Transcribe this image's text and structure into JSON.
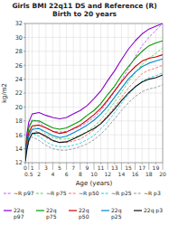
{
  "chart_data": {
    "type": "line",
    "title": "Girls BMI 22q11 DS and Reference (R) Birth to 20 years",
    "x_label": "Age (years)",
    "y_label": "kg/m2",
    "x": [
      0,
      0.25,
      0.5,
      1,
      2,
      3,
      4,
      5,
      6,
      7,
      8,
      9,
      10,
      11,
      12,
      13,
      14,
      15,
      16,
      17,
      18,
      19,
      20
    ],
    "xlim": [
      0,
      20
    ],
    "ylim": [
      12,
      32
    ],
    "xticks": [
      0,
      0.5,
      1,
      2,
      3,
      4,
      5,
      6,
      7,
      8,
      9,
      10,
      11,
      12,
      13,
      14,
      15,
      16,
      17,
      18,
      19,
      20
    ],
    "yticks": [
      12,
      14,
      16,
      18,
      20,
      22,
      24,
      26,
      28,
      30,
      32
    ],
    "grid": true,
    "legend": "bottom",
    "series": [
      {
        "name": "~R p97",
        "color": "#bb44ff",
        "line_style": "dashed",
        "values": [
          13.2,
          15.8,
          17.2,
          18.2,
          17.8,
          17.0,
          16.5,
          16.4,
          16.5,
          16.8,
          17.2,
          17.8,
          18.5,
          19.5,
          20.8,
          22.2,
          23.8,
          25.5,
          27.2,
          28.8,
          30.0,
          31.0,
          32.0
        ]
      },
      {
        "name": "22q\np97",
        "color": "#8800cc",
        "line_style": "solid",
        "values": [
          13.4,
          16.2,
          17.8,
          19.0,
          19.2,
          18.8,
          18.5,
          18.3,
          18.5,
          19.0,
          19.5,
          20.2,
          21.2,
          22.3,
          23.8,
          25.2,
          26.8,
          28.3,
          29.5,
          30.5,
          31.2,
          31.6,
          32.0
        ]
      },
      {
        "name": "~R p75",
        "color": "#44cc44",
        "line_style": "dashed",
        "values": [
          12.9,
          15.2,
          16.5,
          17.3,
          16.9,
          16.1,
          15.6,
          15.4,
          15.4,
          15.6,
          15.9,
          16.5,
          17.2,
          18.2,
          19.4,
          20.7,
          22.1,
          23.6,
          24.9,
          26.1,
          27.0,
          27.7,
          28.5
        ]
      },
      {
        "name": "22q\np75",
        "color": "#009900",
        "line_style": "solid",
        "values": [
          13.0,
          15.5,
          17.0,
          18.0,
          18.0,
          17.5,
          17.0,
          16.8,
          17.0,
          17.5,
          18.0,
          18.8,
          19.5,
          20.5,
          21.8,
          23.0,
          24.5,
          25.8,
          27.0,
          28.0,
          28.8,
          29.2,
          29.5
        ]
      },
      {
        "name": "~R p50",
        "color": "#ff5555",
        "line_style": "dashed",
        "values": [
          12.7,
          14.8,
          16.0,
          16.8,
          16.3,
          15.6,
          15.1,
          14.9,
          14.9,
          15.1,
          15.4,
          16.0,
          16.7,
          17.7,
          18.8,
          20.0,
          21.4,
          22.7,
          23.8,
          24.8,
          25.3,
          25.6,
          26.0
        ]
      },
      {
        "name": "22q\np50",
        "color": "#cc0000",
        "line_style": "solid",
        "values": [
          12.8,
          15.0,
          16.3,
          17.3,
          17.4,
          17.0,
          16.5,
          16.2,
          16.4,
          16.9,
          17.4,
          18.1,
          18.9,
          19.8,
          21.0,
          22.3,
          23.6,
          24.8,
          25.8,
          26.6,
          27.0,
          27.2,
          27.5
        ]
      },
      {
        "name": "~R p25",
        "color": "#00ccdd",
        "line_style": "dashed",
        "values": [
          12.4,
          14.3,
          15.5,
          16.2,
          15.8,
          15.0,
          14.5,
          14.3,
          14.3,
          14.5,
          14.8,
          15.3,
          15.9,
          16.9,
          17.9,
          19.2,
          20.5,
          21.8,
          22.8,
          23.7,
          24.2,
          24.5,
          24.9
        ]
      },
      {
        "name": "22q\np25",
        "color": "#0088cc",
        "line_style": "solid",
        "values": [
          12.5,
          14.6,
          15.8,
          16.8,
          16.9,
          16.4,
          15.9,
          15.6,
          15.8,
          16.3,
          16.8,
          17.4,
          18.1,
          19.0,
          20.1,
          21.4,
          22.7,
          24.0,
          25.0,
          25.8,
          26.3,
          26.6,
          26.9
        ]
      },
      {
        "name": "~R p3",
        "color": "#888888",
        "line_style": "dashed",
        "values": [
          12.1,
          13.8,
          15.0,
          15.7,
          15.2,
          14.5,
          14.0,
          13.8,
          13.8,
          14.0,
          14.3,
          14.7,
          15.3,
          16.1,
          17.1,
          18.3,
          19.5,
          20.6,
          21.5,
          22.2,
          22.6,
          22.8,
          23.2
        ]
      },
      {
        "name": "22q p3",
        "color": "#111111",
        "line_style": "solid",
        "values": [
          12.2,
          14.0,
          15.2,
          16.2,
          16.3,
          15.8,
          15.2,
          14.9,
          15.0,
          15.4,
          15.9,
          16.4,
          16.9,
          17.6,
          18.6,
          19.7,
          20.9,
          22.0,
          22.9,
          23.6,
          24.0,
          24.2,
          24.6
        ]
      }
    ]
  }
}
